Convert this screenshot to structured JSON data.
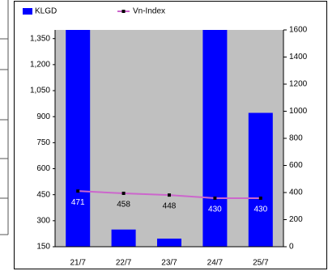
{
  "chart_data": {
    "type": "bar_line",
    "categories": [
      "21/7",
      "22/7",
      "23/7",
      "24/7",
      "25/7"
    ],
    "series": [
      {
        "name": "KLGD",
        "color": "#0000ff",
        "axis": "y2",
        "values": [
          1700,
          127,
          60,
          1700,
          988
        ]
      },
      {
        "name": "Vn-Index",
        "color": "#cc66cc",
        "values": [
          471,
          458,
          448,
          430,
          430
        ]
      }
    ],
    "ylim": [
      150,
      1400
    ],
    "yticks": [
      150,
      300,
      450,
      600,
      750,
      900,
      {
        "value": 1050,
        "label": "1,050"
      },
      {
        "value": 1200,
        "label": "1,200"
      },
      {
        "value": 1350,
        "label": "1,350"
      }
    ],
    "y2lim": [
      0,
      1600
    ],
    "y2ticks": [
      0,
      200,
      400,
      600,
      800,
      1000,
      1200,
      1400,
      1600
    ]
  }
}
